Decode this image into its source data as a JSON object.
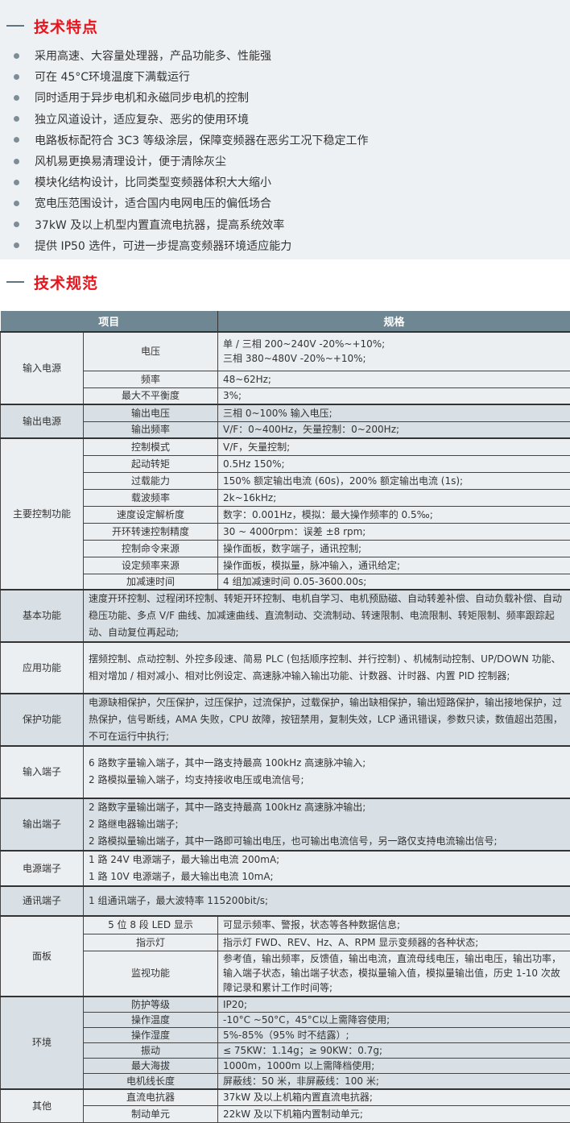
{
  "features": {
    "title": "技术特点",
    "items": [
      "采用高速、大容量处理器，产品功能多、性能强",
      "可在 45°C环境温度下满载运行",
      "同时适用于异步电机和永磁同步电机的控制",
      "独立风道设计，适应复杂、恶劣的使用环境",
      "电路板标配符合 3C3 等级涂层，保障变频器在恶劣工况下稳定工作",
      "风机易更换易清理设计，便于清除灰尘",
      "模块化结构设计，比同类型变频器体积大大缩小",
      "宽电压范围设计，适合国内电网电压的偏低场合",
      "37kW 及以上机型内置直流电抗器，提高系统效率",
      "提供 IP50 选件，可进一步提高变频器环境适应能力"
    ]
  },
  "specs": {
    "title": "技术规范",
    "header": {
      "item": "项目",
      "spec": "规格"
    },
    "groups": [
      {
        "name": "输入电源",
        "rows": [
          {
            "item": "电压",
            "spec": "单 / 三相 200~240V -20%~+10%;\n三相 380~480V -20%~+10%;"
          },
          {
            "item": "频率",
            "spec": "48~62Hz;"
          },
          {
            "item": "最大不平衡度",
            "spec": "3%;"
          }
        ]
      },
      {
        "name": "输出电源",
        "rows": [
          {
            "item": "输出电压",
            "spec": "三相 0~100% 输入电压;"
          },
          {
            "item": "输出频率",
            "spec": "V/F：0~400Hz，矢量控制：0~200Hz;"
          }
        ]
      },
      {
        "name": "主要控制功能",
        "rows": [
          {
            "item": "控制模式",
            "spec": "V/F，矢量控制;"
          },
          {
            "item": "起动转矩",
            "spec": "0.5Hz  150%;"
          },
          {
            "item": "过载能力",
            "spec": "150% 额定输出电流 (60s)，200% 额定输出电流 (1s);"
          },
          {
            "item": "载波频率",
            "spec": "2k~16kHz;"
          },
          {
            "item": "速度设定解析度",
            "spec": "数字：0.001Hz，模拟：最大操作频率的 0.5‰;"
          },
          {
            "item": "开环转速控制精度",
            "spec": "30 ~ 4000rpm：误差 ±8 rpm;"
          },
          {
            "item": "控制命令来源",
            "spec": "操作面板，数字端子，通讯控制;"
          },
          {
            "item": "设定频率来源",
            "spec": "操作面板，模拟量，脉冲输入，通讯给定;"
          },
          {
            "item": "加减速时间",
            "spec": "4 组加减速时间 0.05-3600.00s;"
          }
        ]
      },
      {
        "name": "基本功能",
        "spec": "速度开环控制、过程闭环控制、转矩开环控制、电机自学习、电机预励磁、自动转差补偿、自动负载补偿、自动稳压功能、多点 V/F 曲线、加减速曲线、直流制动、交流制动、转速限制、电流限制、转矩限制、频率跟踪起动、自动复位再起动;"
      },
      {
        "name": "应用功能",
        "spec": "摆频控制、点动控制、外控多段速、简易 PLC (包括顺序控制、并行控制) 、机械制动控制、UP/DOWN 功能、相对增加 / 相对减小、相对比例设定、高速脉冲输入输出功能、计数器、计时器、内置 PID 控制器;"
      },
      {
        "name": "保护功能",
        "spec": "电源缺相保护，欠压保护，过压保护，过流保护，过载保护，输出缺相保护，输出短路保护，输出接地保护，过热保护，信号断线，AMA 失败，CPU 故障，按钮禁用，复制失效，LCP 通讯错误，参数只读，数值超出范围，不可在运行中执行;"
      },
      {
        "name": "输入端子",
        "spec": "6 路数字量输入端子，其中一路支持最高 100kHz 高速脉冲输入;\n2 路模拟量输入端子，均支持接收电压或电流信号;"
      },
      {
        "name": "输出端子",
        "spec": "2 路数字量输出端子，其中一路支持最高 100kHz 高速脉冲输出;\n2 路继电器输出端子;\n2 路模拟量输出端子，其中一路即可输出电压，也可输出电流信号，另一路仅支持电流输出信号;"
      },
      {
        "name": "电源端子",
        "spec": "1 路 24V 电源端子，最大输出电流 200mA;\n1 路 10V 电源端子，最大输出电流 10mA;"
      },
      {
        "name": "通讯端子",
        "spec": "1 组通讯端子，最大波特率 115200bit/s;"
      },
      {
        "name": "面板",
        "rows": [
          {
            "item": "5 位 8 段 LED 显示",
            "spec": "可显示频率、警报，状态等各种数据信息;"
          },
          {
            "item": "指示灯",
            "spec": "指示灯 FWD、REV、Hz、A、RPM 显示变频器的各种状态;"
          },
          {
            "item": "监视功能",
            "spec": "参考值，输出频率，反馈值，输出电流，直流母线电压，输出电压，输出功率，输入端子状态，输出端子状态，模拟量输入值，模拟量输出值，历史 1-10 次故障记录和累计工作时间等;"
          }
        ]
      },
      {
        "name": "环境",
        "rows": [
          {
            "item": "防护等级",
            "spec": "IP20;"
          },
          {
            "item": "操作温度",
            "spec": "-10°C ~50°C，45°C以上需降容使用;"
          },
          {
            "item": "操作湿度",
            "spec": "5%-85%（95% 时不结露）;"
          },
          {
            "item": "振动",
            "spec": "≤ 75KW：1.14g；≥ 90KW：0.7g;"
          },
          {
            "item": "最大海拔",
            "spec": "1000m，1000m 以上需降档使用;"
          },
          {
            "item": "电机线长度",
            "spec": "屏蔽线：50 米，非屏蔽线：100 米;"
          }
        ]
      },
      {
        "name": "其他",
        "rows": [
          {
            "item": "直流电抗器",
            "spec": "37kW 及以上机箱内置直流电抗器;"
          },
          {
            "item": "制动单元",
            "spec": "22kW 及以下机箱内置制动单元;"
          }
        ]
      }
    ]
  }
}
